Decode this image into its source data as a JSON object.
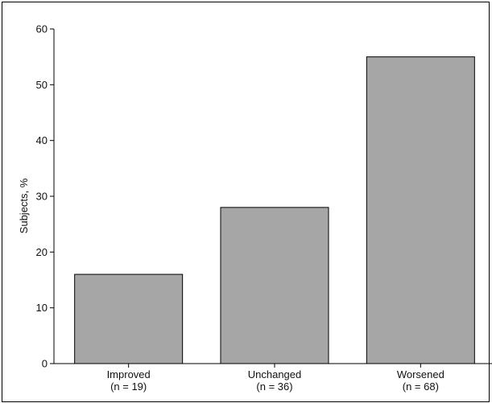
{
  "chart_data": {
    "type": "bar",
    "title": "",
    "xlabel": "",
    "ylabel": "Subjects, %",
    "ylim": [
      0,
      60
    ],
    "yticks": [
      0,
      10,
      20,
      30,
      40,
      50,
      60
    ],
    "grid": false,
    "categories": [
      "Improved",
      "Unchanged",
      "Worsened"
    ],
    "category_counts": [
      "(n = 19)",
      "(n = 36)",
      "(n = 68)"
    ],
    "values": [
      16,
      28,
      55
    ],
    "bar_color": "#a6a6a6",
    "bar_edge_color": "#000000"
  }
}
